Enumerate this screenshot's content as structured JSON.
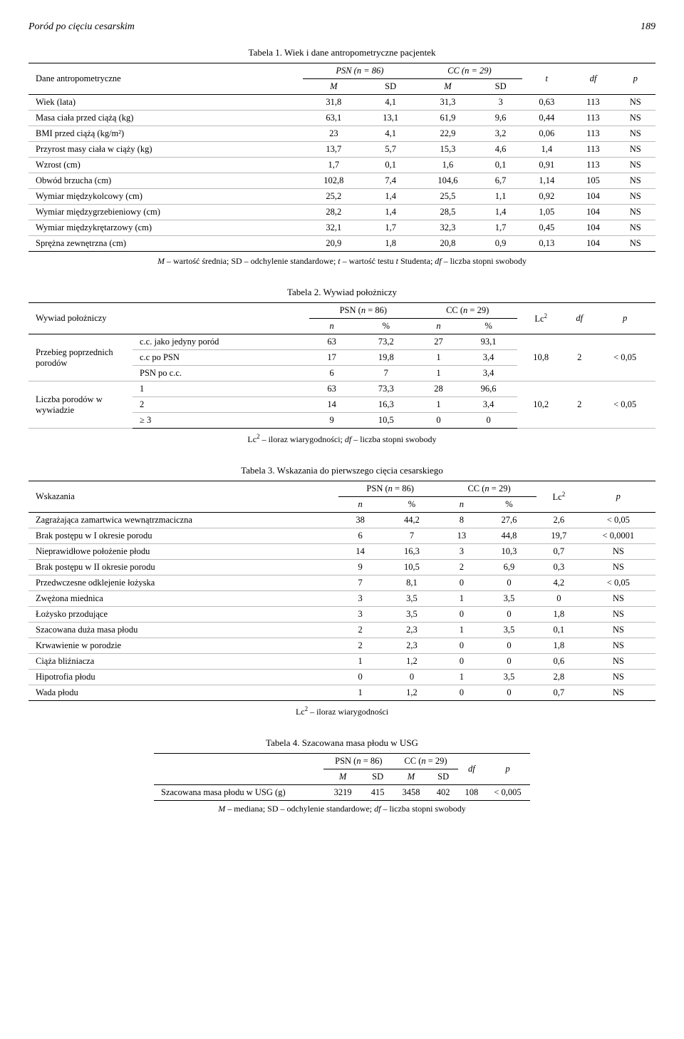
{
  "header": {
    "title": "Poród po cięciu cesarskim",
    "page": "189"
  },
  "t1": {
    "caption": "Tabela 1. Wiek i dane antropometryczne pacjentek",
    "col_group": "Dane antropometryczne",
    "psn_head": "PSN (n = 86)",
    "cc_head": "CC (n = 29)",
    "sub_m": "M",
    "sub_sd": "SD",
    "t": "t",
    "df": "df",
    "p": "p",
    "rows": [
      {
        "label": "Wiek (lata)",
        "m1": "31,8",
        "sd1": "4,1",
        "m2": "31,3",
        "sd2": "3",
        "t": "0,63",
        "df": "113",
        "p": "NS"
      },
      {
        "label": "Masa ciała przed ciążą (kg)",
        "m1": "63,1",
        "sd1": "13,1",
        "m2": "61,9",
        "sd2": "9,6",
        "t": "0,44",
        "df": "113",
        "p": "NS"
      },
      {
        "label": "BMI przed ciążą (kg/m²)",
        "m1": "23",
        "sd1": "4,1",
        "m2": "22,9",
        "sd2": "3,2",
        "t": "0,06",
        "df": "113",
        "p": "NS"
      },
      {
        "label": "Przyrost masy ciała w ciąży (kg)",
        "m1": "13,7",
        "sd1": "5,7",
        "m2": "15,3",
        "sd2": "4,6",
        "t": "1,4",
        "df": "113",
        "p": "NS"
      },
      {
        "label": "Wzrost (cm)",
        "m1": "1,7",
        "sd1": "0,1",
        "m2": "1,6",
        "sd2": "0,1",
        "t": "0,91",
        "df": "113",
        "p": "NS"
      },
      {
        "label": "Obwód brzucha (cm)",
        "m1": "102,8",
        "sd1": "7,4",
        "m2": "104,6",
        "sd2": "6,7",
        "t": "1,14",
        "df": "105",
        "p": "NS"
      },
      {
        "label": "Wymiar międzykolcowy (cm)",
        "m1": "25,2",
        "sd1": "1,4",
        "m2": "25,5",
        "sd2": "1,1",
        "t": "0,92",
        "df": "104",
        "p": "NS"
      },
      {
        "label": "Wymiar międzygrzebieniowy (cm)",
        "m1": "28,2",
        "sd1": "1,4",
        "m2": "28,5",
        "sd2": "1,4",
        "t": "1,05",
        "df": "104",
        "p": "NS"
      },
      {
        "label": "Wymiar międzykrętarzowy (cm)",
        "m1": "32,1",
        "sd1": "1,7",
        "m2": "32,3",
        "sd2": "1,7",
        "t": "0,45",
        "df": "104",
        "p": "NS"
      },
      {
        "label": "Sprężna zewnętrzna (cm)",
        "m1": "20,9",
        "sd1": "1,8",
        "m2": "20,8",
        "sd2": "0,9",
        "t": "0,13",
        "df": "104",
        "p": "NS"
      }
    ],
    "footnote": "M – wartość średnia; SD – odchylenie standardowe; t – wartość testu t Studenta; df – liczba stopni swobody"
  },
  "t2": {
    "caption": "Tabela 2. Wywiad położniczy",
    "col_group": "Wywiad położniczy",
    "psn_head": "PSN (n = 86)",
    "cc_head": "CC (n = 29)",
    "n": "n",
    "pct": "%",
    "lc": "Lc²",
    "df": "df",
    "p": "p",
    "g1_label": "Przebieg poprzednich porodów",
    "g1_rows": [
      {
        "label": "c.c. jako jedyny poród",
        "n1": "63",
        "p1": "73,2",
        "n2": "27",
        "p2": "93,1"
      },
      {
        "label": "c.c po PSN",
        "n1": "17",
        "p1": "19,8",
        "n2": "1",
        "p2": "3,4"
      },
      {
        "label": "PSN po c.c.",
        "n1": "6",
        "p1": "7",
        "n2": "1",
        "p2": "3,4"
      }
    ],
    "g1_lc": "10,8",
    "g1_df": "2",
    "g1_p": "< 0,05",
    "g2_label": "Liczba porodów w wywiadzie",
    "g2_rows": [
      {
        "label": "1",
        "n1": "63",
        "p1": "73,3",
        "n2": "28",
        "p2": "96,6"
      },
      {
        "label": "2",
        "n1": "14",
        "p1": "16,3",
        "n2": "1",
        "p2": "3,4"
      },
      {
        "label": "≥ 3",
        "n1": "9",
        "p1": "10,5",
        "n2": "0",
        "p2": "0"
      }
    ],
    "g2_lc": "10,2",
    "g2_df": "2",
    "g2_p": "< 0,05",
    "footnote": "Lc² – iloraz wiarygodności; df – liczba stopni swobody"
  },
  "t3": {
    "caption": "Tabela 3. Wskazania do pierwszego cięcia cesarskiego",
    "col_group": "Wskazania",
    "psn_head": "PSN (n = 86)",
    "cc_head": "CC (n = 29)",
    "n": "n",
    "pct": "%",
    "lc": "Lc²",
    "p": "p",
    "rows": [
      {
        "label": "Zagrażająca zamartwica wewnątrzmaciczna",
        "n1": "38",
        "p1": "44,2",
        "n2": "8",
        "p2": "27,6",
        "lc": "2,6",
        "p": "< 0,05"
      },
      {
        "label": "Brak postępu w I okresie porodu",
        "n1": "6",
        "p1": "7",
        "n2": "13",
        "p2": "44,8",
        "lc": "19,7",
        "p": "< 0,0001"
      },
      {
        "label": "Nieprawidłowe położenie płodu",
        "n1": "14",
        "p1": "16,3",
        "n2": "3",
        "p2": "10,3",
        "lc": "0,7",
        "p": "NS"
      },
      {
        "label": "Brak postępu w II okresie porodu",
        "n1": "9",
        "p1": "10,5",
        "n2": "2",
        "p2": "6,9",
        "lc": "0,3",
        "p": "NS"
      },
      {
        "label": "Przedwczesne odklejenie łożyska",
        "n1": "7",
        "p1": "8,1",
        "n2": "0",
        "p2": "0",
        "lc": "4,2",
        "p": "< 0,05"
      },
      {
        "label": "Zwężona miednica",
        "n1": "3",
        "p1": "3,5",
        "n2": "1",
        "p2": "3,5",
        "lc": "0",
        "p": "NS"
      },
      {
        "label": "Łożysko przodujące",
        "n1": "3",
        "p1": "3,5",
        "n2": "0",
        "p2": "0",
        "lc": "1,8",
        "p": "NS"
      },
      {
        "label": "Szacowana duża masa płodu",
        "n1": "2",
        "p1": "2,3",
        "n2": "1",
        "p2": "3,5",
        "lc": "0,1",
        "p": "NS"
      },
      {
        "label": "Krwawienie w porodzie",
        "n1": "2",
        "p1": "2,3",
        "n2": "0",
        "p2": "0",
        "lc": "1,8",
        "p": "NS"
      },
      {
        "label": "Ciąża bliźniacza",
        "n1": "1",
        "p1": "1,2",
        "n2": "0",
        "p2": "0",
        "lc": "0,6",
        "p": "NS"
      },
      {
        "label": "Hipotrofia płodu",
        "n1": "0",
        "p1": "0",
        "n2": "1",
        "p2": "3,5",
        "lc": "2,8",
        "p": "NS"
      },
      {
        "label": "Wada płodu",
        "n1": "1",
        "p1": "1,2",
        "n2": "0",
        "p2": "0",
        "lc": "0,7",
        "p": "NS"
      }
    ],
    "footnote": "Lc² – iloraz wiarygodności"
  },
  "t4": {
    "caption": "Tabela 4. Szacowana masa płodu w USG",
    "psn_head": "PSN (n = 86)",
    "cc_head": "CC (n = 29)",
    "m": "M",
    "sd": "SD",
    "df": "df",
    "p": "p",
    "row_label": "Szacowana masa płodu w USG (g)",
    "m1": "3219",
    "sd1": "415",
    "m2": "3458",
    "sd2": "402",
    "dfv": "108",
    "pv": "< 0,005",
    "footnote": "M – mediana; SD – odchylenie standardowe; df – liczba stopni swobody"
  }
}
